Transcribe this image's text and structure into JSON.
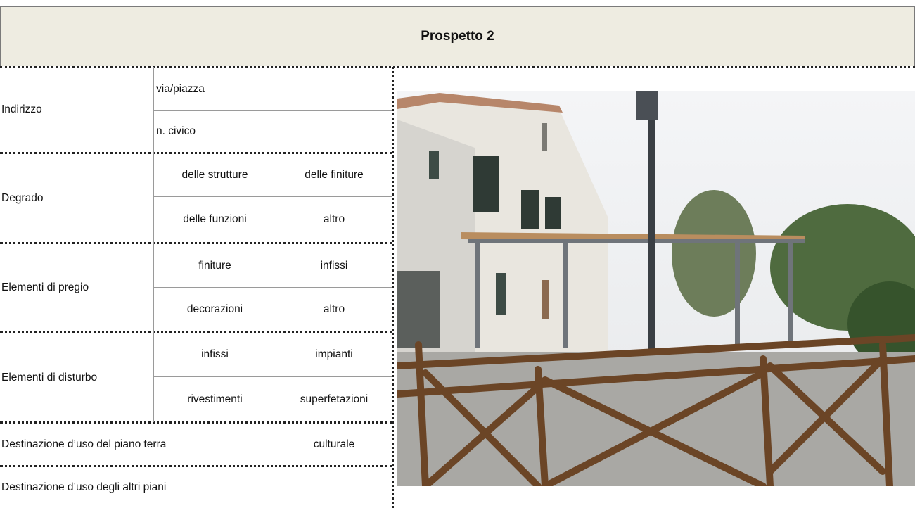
{
  "header": {
    "title": "Prospetto 2"
  },
  "table": {
    "groups": [
      {
        "label": "Indirizzo",
        "cells": [
          [
            "via/piazza"
          ],
          [
            "n. civico"
          ]
        ]
      },
      {
        "label": "Degrado",
        "cells": [
          [
            "delle strutture",
            "delle finiture"
          ],
          [
            "delle funzioni",
            "altro"
          ]
        ]
      },
      {
        "label": "Elementi di pregio",
        "cells": [
          [
            "finiture",
            "infissi"
          ],
          [
            "decorazioni",
            "altro"
          ]
        ]
      },
      {
        "label": "Elementi di disturbo",
        "cells": [
          [
            "infissi",
            "impianti"
          ],
          [
            "rivestimenti",
            "superfetazioni"
          ]
        ]
      }
    ],
    "rows": [
      {
        "label": "Destinazione d’uso del piano terra",
        "value": "culturale"
      },
      {
        "label": "Destinazione d’uso degli altri piani"
      }
    ]
  }
}
